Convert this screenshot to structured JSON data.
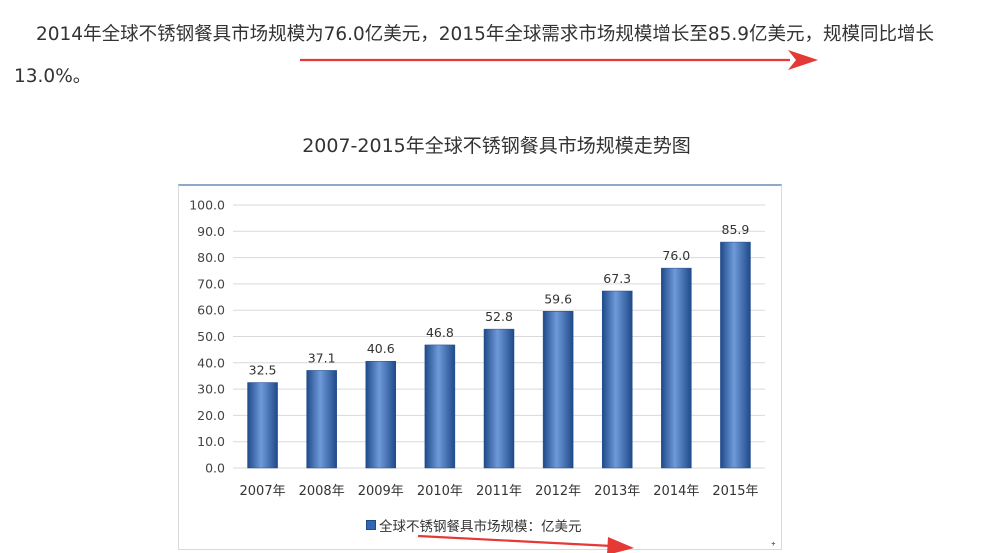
{
  "paragraph": "2014年全球不锈钢餐具市场规模为76.0亿美元，2015年全球需求市场规模增长至85.9亿美元，规模同比增长13.0%。",
  "colors": {
    "bar": "#3a6dbd",
    "bar_dark": "#1f4a8a",
    "bar_light": "#6f9ad9",
    "arrow": "#e53935",
    "grid": "#d9d9d9"
  },
  "chart_data": {
    "type": "bar",
    "title": "2007-2015年全球不锈钢餐具市场规模走势图",
    "categories": [
      "2007年",
      "2008年",
      "2009年",
      "2010年",
      "2011年",
      "2012年",
      "2013年",
      "2014年",
      "2015年"
    ],
    "series": [
      {
        "name": "全球不锈钢餐具市场规模：亿美元",
        "values": [
          32.5,
          37.1,
          40.6,
          46.8,
          52.8,
          59.6,
          67.3,
          76.0,
          85.9
        ]
      }
    ],
    "value_labels": [
      "32.5",
      "37.1",
      "40.6",
      "46.8",
      "52.8",
      "59.6",
      "67.3",
      "76.0",
      "85.9"
    ],
    "yticks": [
      "0.0",
      "10.0",
      "20.0",
      "30.0",
      "40.0",
      "50.0",
      "60.0",
      "70.0",
      "80.0",
      "90.0",
      "100.0"
    ],
    "ylim": [
      0,
      100
    ],
    "grid": true,
    "legend_position": "bottom"
  }
}
